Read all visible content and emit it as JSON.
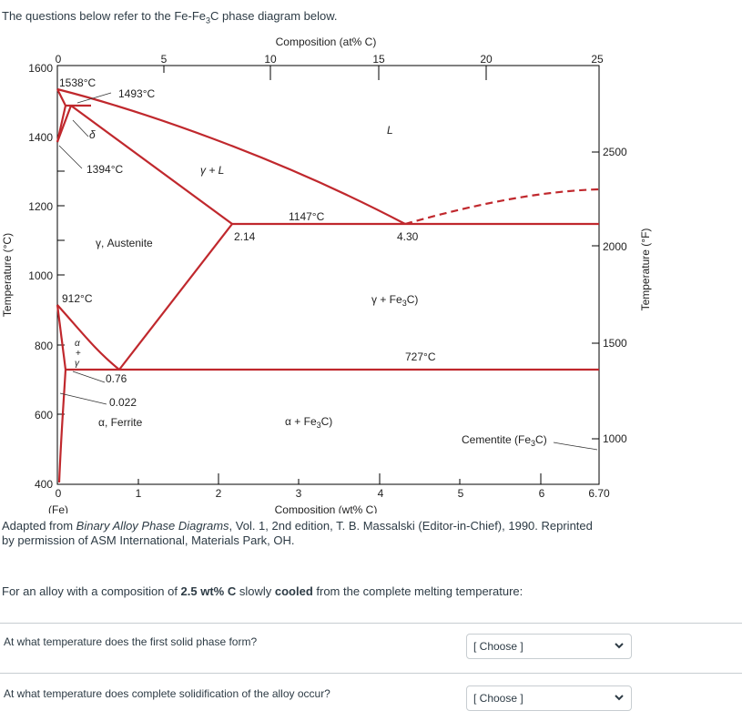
{
  "intro": {
    "prefix": "The questions below refer to the Fe-Fe",
    "sub": "3",
    "suffix": "C phase diagram below."
  },
  "diagram": {
    "top_axis_title": "Composition (at% C)",
    "top_ticks": [
      "0",
      "5",
      "10",
      "15",
      "20",
      "25"
    ],
    "bottom_axis_title": "Composition (wt% C)",
    "bottom_ticks": [
      "0",
      "1",
      "2",
      "3",
      "4",
      "5",
      "6",
      "6.70"
    ],
    "bottom_left_note": "(Fe)",
    "left_axis_title": "Temperature (°C)",
    "left_ticks": [
      "1600",
      "1400",
      "1200",
      "1000",
      "800",
      "600",
      "400"
    ],
    "right_axis_title": "Temperature (°F)",
    "right_ticks": [
      "2500",
      "2000",
      "1500",
      "1000"
    ],
    "labels": {
      "t1538": "1538°C",
      "t1493": "1493°C",
      "delta": "δ",
      "t1394": "1394°C",
      "gamma_l": "γ + L",
      "liquid": "L",
      "t1147": "1147°C",
      "c214": "2.14",
      "c430": "4.30",
      "austenite": "γ, Austenite",
      "t912": "912°C",
      "gamma_fe3c": "γ + Fe",
      "alpha_gamma_a": "α",
      "alpha_gamma_plus": "+",
      "alpha_gamma_g": "γ",
      "t727": "727°C",
      "c076": "0.76",
      "c0022": "0.022",
      "ferrite": "α, Ferrite",
      "alpha_fe3c": "α + Fe",
      "cementite": "Cementite (Fe",
      "sub3": "3",
      "c_suffix": "C)",
      "c_close": ")"
    }
  },
  "caption": {
    "prefix": "Adapted from ",
    "italic": "Binary Alloy Phase Diagrams",
    "suffix": ", Vol. 1, 2nd edition, T. B. Massalski (Editor-in-Chief), 1990. Reprinted by permission of ASM International, Materials Park, OH."
  },
  "question_intro": {
    "p1": "For an alloy with a composition of ",
    "b1": "2.5 wt% C",
    "p2": " slowly ",
    "b2": "cooled",
    "p3": " from the complete melting temperature:"
  },
  "questions": [
    {
      "text": "At what temperature does the first solid phase form?",
      "select_value": "[ Choose ]"
    },
    {
      "text": "At what temperature does complete solidification of the alloy occur?",
      "select_value": "[ Choose ]"
    }
  ],
  "colors": {
    "phase_line": "#c0282d",
    "frame": "#000000"
  }
}
